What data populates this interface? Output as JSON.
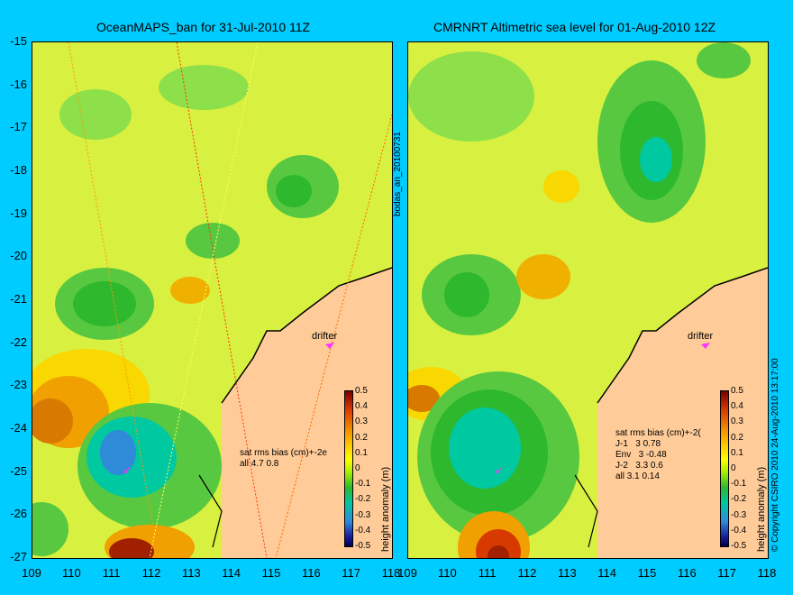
{
  "left_panel": {
    "title": "OceanMAPS_ban for 31-Jul-2010 11Z",
    "stats": "sat rms bias (cm)+-2e\nall 4.7 0.8",
    "drifter_label": "drifter",
    "colorbar_label": "height anomaly (m)"
  },
  "right_panel": {
    "title": "CMRNRT Altimetric sea level  for 01-Aug-2010 12Z",
    "stats": "sat rms bias (cm)+-2(\nJ-1   3 0.78\nEnv   3 -0.48\nJ-2   3.3 0.6\nall 3.1 0.14",
    "drifter_label": "drifter",
    "colorbar_label": "height anomaly (m)"
  },
  "side_label_middle": "bodas_an_20100731",
  "side_label_right": "© Copyright CSIRO 2010   24-Aug-2010 13:17:00",
  "y_ticks": [
    "-15",
    "-16",
    "-17",
    "-18",
    "-19",
    "-20",
    "-21",
    "-22",
    "-23",
    "-24",
    "-25",
    "-26",
    "-27"
  ],
  "x_ticks_left": [
    "109",
    "110",
    "111",
    "112",
    "113",
    "114",
    "115",
    "116",
    "117",
    "118"
  ],
  "x_ticks_right": [
    "109",
    "110",
    "111",
    "112",
    "113",
    "114",
    "115",
    "116",
    "117",
    "118"
  ],
  "colorbar_ticks": [
    "0.5",
    "0.4",
    "0.3",
    "0.2",
    "0.1",
    "0",
    "-0.1",
    "-0.2",
    "-0.3",
    "-0.4",
    "-0.5"
  ],
  "colors": {
    "background": "#00ccff",
    "land": "#ffcc99",
    "field_base": "#d8f040",
    "coast": "#000000",
    "drifter": "#ff33ff"
  },
  "map_extent": {
    "lon": [
      109,
      118
    ],
    "lat": [
      -27,
      -15
    ]
  }
}
